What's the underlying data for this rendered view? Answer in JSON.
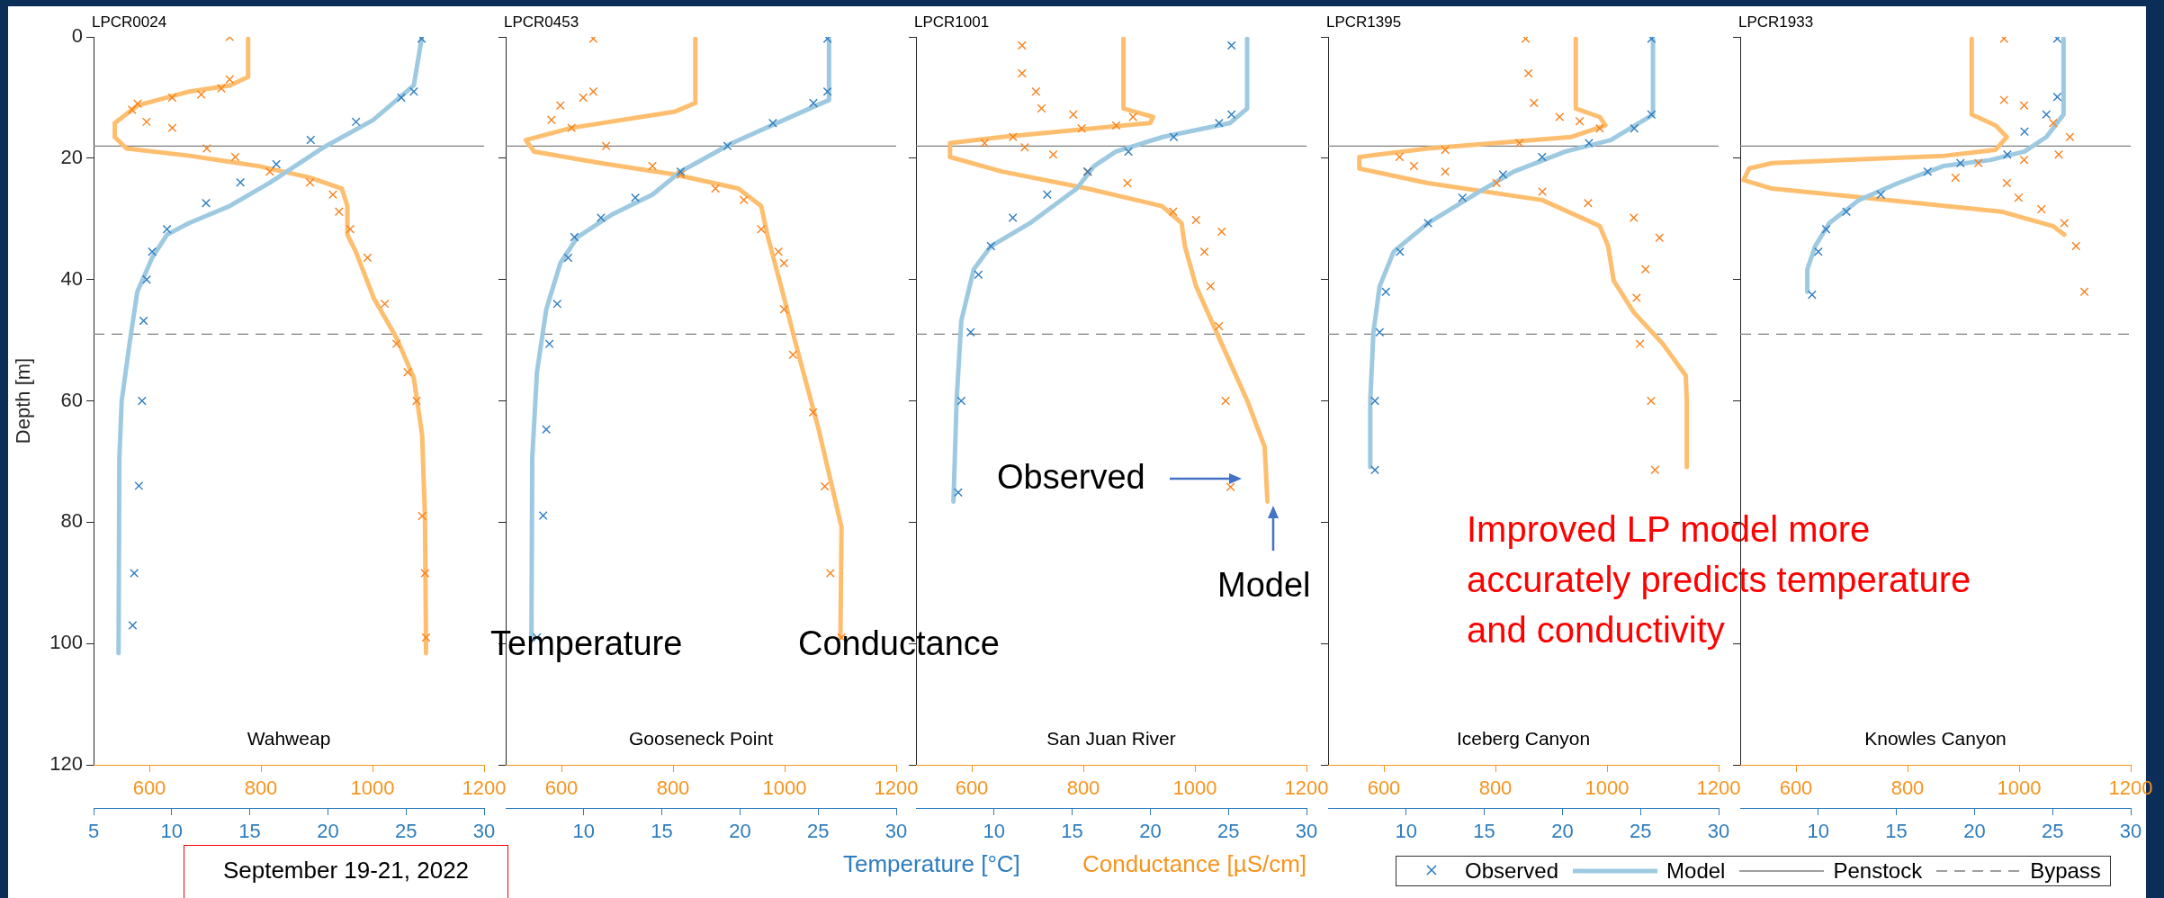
{
  "chart_data": [
    {
      "type": "line",
      "title": "LPCR0024",
      "subtitle": "Wahweap",
      "ylabel": "Depth [m]",
      "ylim": [
        120,
        0
      ],
      "yticks": [
        0,
        20,
        40,
        60,
        80,
        100,
        120
      ],
      "xlim": [
        5,
        30
      ],
      "xticks": [
        5,
        10,
        15,
        20,
        25,
        30
      ],
      "x2lim": [
        500,
        1200
      ],
      "x2ticks": [
        600,
        800,
        1000,
        1200
      ],
      "ref_lines": [
        {
          "axis": "y",
          "value": 18,
          "color": "#7f7f7f",
          "line_style": "solid"
        },
        {
          "axis": "y",
          "value": 49,
          "color": "#7f7f7f",
          "line_style": "dashed"
        }
      ],
      "annotations": [
        "September 19-21, 2022"
      ],
      "series": [
        {
          "type": "scatter",
          "marker": "cross",
          "color": "#2e7dbf",
          "x": [
            26.0,
            25.5,
            24.7,
            21.8,
            18.9,
            16.7,
            14.4,
            12.2,
            9.7,
            8.75,
            8.4,
            8.2,
            8.1,
            7.9,
            7.6,
            7.5
          ],
          "values": [
            0.3,
            9,
            10,
            14,
            17,
            21,
            24,
            27.4,
            31.7,
            35.4,
            40,
            46.8,
            60,
            74,
            88.4,
            97
          ]
        },
        {
          "type": "line",
          "line_style": "solid",
          "color": "#9ecae1",
          "x": [
            26.0,
            25.5,
            22.9,
            19.6,
            16.3,
            13.7,
            11.1,
            9.7,
            8.75,
            7.8,
            7.3,
            6.8,
            6.65,
            6.6
          ],
          "values": [
            0.3,
            8,
            13.7,
            18.4,
            24,
            27.9,
            30.7,
            32.6,
            36.4,
            42,
            50.6,
            60,
            69.5,
            101.6
          ]
        },
        {
          "type": "scatter",
          "marker": "cross",
          "axis": "x2",
          "color": "#f7821e",
          "x": [
            744,
            744,
            729,
            693,
            641,
            579,
            569,
            595,
            641,
            703,
            754,
            816,
            888,
            929,
            940,
            960,
            991,
            1022,
            1043,
            1063,
            1079,
            1089,
            1094,
            1096
          ],
          "values": [
            0,
            7,
            8.5,
            9.5,
            10,
            11,
            12,
            14,
            15,
            18.4,
            19.8,
            22.2,
            24,
            26,
            28.8,
            31.7,
            36.4,
            44,
            50.6,
            55.3,
            60,
            79,
            88.4,
            99
          ]
        },
        {
          "type": "line",
          "line_style": "solid",
          "axis": "x2",
          "color": "#fdbf6f",
          "x": [
            777,
            777,
            744,
            672,
            579,
            538,
            538,
            559,
            672,
            796,
            888,
            945,
            955,
            955,
            970,
            1002,
            1043,
            1074,
            1089,
            1094,
            1096
          ],
          "values": [
            0.3,
            6.6,
            8,
            9,
            11.3,
            14.2,
            16.5,
            18.4,
            19.6,
            21.3,
            23.2,
            25,
            27.9,
            32.6,
            35.4,
            43,
            49.6,
            56.2,
            65.7,
            79,
            101.6
          ]
        }
      ]
    },
    {
      "type": "line",
      "title": "LPCR0453",
      "subtitle": "Gooseneck Point",
      "tick_labels": "x",
      "ylim": [
        120,
        0
      ],
      "yticks": [
        0,
        20,
        40,
        60,
        80,
        100,
        120
      ],
      "xlim": [
        5,
        30
      ],
      "xticks": [
        10,
        15,
        20,
        25,
        30
      ],
      "x2lim": [
        500,
        1200
      ],
      "x2ticks": [
        600,
        800,
        1000,
        1200
      ],
      "ref_lines": [
        {
          "axis": "y",
          "value": 18,
          "color": "#7f7f7f",
          "line_style": "solid"
        },
        {
          "axis": "y",
          "value": 49,
          "color": "#7f7f7f",
          "line_style": "dashed"
        }
      ],
      "annotations": [
        "Temperature",
        "Conductance"
      ],
      "series": [
        {
          "type": "scatter",
          "marker": "cross",
          "color": "#2e7dbf",
          "x": [
            25.6,
            25.6,
            24.7,
            22.1,
            19.2,
            16.2,
            13.3,
            11.1,
            9.4,
            9.0,
            8.3,
            7.8,
            7.6,
            7.4,
            7.0
          ],
          "values": [
            0.3,
            9,
            10.9,
            14.2,
            18,
            22.2,
            26.5,
            29.8,
            33,
            36.4,
            44,
            50.6,
            64.7,
            78.9,
            99
          ]
        },
        {
          "type": "line",
          "line_style": "solid",
          "color": "#9ecae1",
          "x": [
            25.7,
            25.7,
            22.8,
            19.5,
            16.2,
            14.4,
            11.8,
            9.6,
            8.5,
            7.6,
            7.0,
            6.7,
            6.65
          ],
          "values": [
            0.3,
            10.4,
            13.7,
            17.5,
            22.2,
            26,
            29.3,
            33,
            37.3,
            44.9,
            55.3,
            69.5,
            98.8
          ]
        },
        {
          "type": "scatter",
          "marker": "cross",
          "axis": "x2",
          "color": "#f7821e",
          "x": [
            657,
            657,
            639,
            598,
            582,
            618,
            680,
            763,
            814,
            876,
            927,
            958,
            989,
            999,
            999,
            1015,
            1051,
            1072,
            1082,
            1102
          ],
          "values": [
            0.3,
            9,
            10,
            11.3,
            13.7,
            15,
            18,
            21.3,
            22.7,
            25,
            26.9,
            31.7,
            35.4,
            37.3,
            44.9,
            52.4,
            61.9,
            74.1,
            88.4,
            99
          ]
        },
        {
          "type": "line",
          "line_style": "solid",
          "axis": "x2",
          "color": "#fdbf6f",
          "x": [
            840,
            840,
            804,
            618,
            536,
            551,
            670,
            804,
            917,
            958,
            969,
            999,
            1020,
            1061,
            1092,
            1102,
            1100
          ],
          "values": [
            0.3,
            10.9,
            12.3,
            15,
            17,
            18.9,
            20.8,
            22.7,
            25,
            27.9,
            32.6,
            43,
            50.6,
            64.7,
            76.9,
            80.8,
            99
          ]
        }
      ]
    },
    {
      "type": "line",
      "title": "LPCR1001",
      "subtitle": "San Juan River",
      "xlabel": "Temperature [°C]",
      "x2label": "Conductance [µS/cm]",
      "tick_labels": "x",
      "ylim": [
        120,
        0
      ],
      "yticks": [
        0,
        20,
        40,
        60,
        80,
        100,
        120
      ],
      "xlim": [
        5,
        30
      ],
      "xticks": [
        10,
        15,
        20,
        25,
        30
      ],
      "x2lim": [
        500,
        1200
      ],
      "x2ticks": [
        600,
        800,
        1000,
        1200
      ],
      "ref_lines": [
        {
          "axis": "y",
          "value": 18,
          "color": "#7f7f7f",
          "line_style": "solid"
        },
        {
          "axis": "y",
          "value": 49,
          "color": "#7f7f7f",
          "line_style": "dashed"
        }
      ],
      "annotations": [
        "Observed",
        "Model"
      ],
      "series": [
        {
          "type": "scatter",
          "marker": "cross",
          "color": "#2e7dbf",
          "x": [
            25.2,
            25.2,
            24.4,
            21.5,
            18.6,
            16.0,
            13.4,
            11.2,
            9.8,
            9.0,
            8.5,
            7.9,
            7.7
          ],
          "values": [
            1.4,
            12.8,
            14.2,
            16.5,
            18.9,
            22.2,
            26,
            29.8,
            34.5,
            39.2,
            48.7,
            60,
            75.1
          ]
        },
        {
          "type": "line",
          "line_style": "solid",
          "color": "#9ecae1",
          "x": [
            26.2,
            26.2,
            25.1,
            20.8,
            17.8,
            16.4,
            15.3,
            12.3,
            9.8,
            8.7,
            7.9,
            7.6,
            7.4
          ],
          "values": [
            0.3,
            11.8,
            14.2,
            16.5,
            18.9,
            21.3,
            25,
            30.7,
            34.5,
            38.3,
            46.8,
            60,
            76.6
          ]
        },
        {
          "type": "scatter",
          "marker": "cross",
          "axis": "x2",
          "color": "#f7821e",
          "x": [
            690,
            690,
            715,
            725,
            782,
            889,
            859,
            797,
            674,
            623,
            695,
            746,
            807,
            879,
            961,
            1002,
            1048,
            1017,
            1028,
            1043,
            1055,
            1064
          ],
          "values": [
            1.4,
            6,
            9,
            11.8,
            12.8,
            13.2,
            14.6,
            15.1,
            16.5,
            17.5,
            18.2,
            19.4,
            22.2,
            24.1,
            28.8,
            30.2,
            32.1,
            35.4,
            41.1,
            47.7,
            60,
            74.2
          ]
        },
        {
          "type": "line",
          "line_style": "solid",
          "axis": "x2",
          "color": "#fdbf6f",
          "x": [
            872,
            872,
            925,
            920,
            654,
            561,
            561,
            654,
            807,
            941,
            976,
            982,
            1002,
            1048,
            1094,
            1125,
            1130
          ],
          "values": [
            0.3,
            11.8,
            13.2,
            14.2,
            16.5,
            17.5,
            19.8,
            22.2,
            25,
            27.9,
            30.7,
            34.5,
            41.1,
            50.6,
            60,
            67.6,
            76.6
          ]
        }
      ]
    },
    {
      "type": "line",
      "title": "LPCR1395",
      "subtitle": "Iceberg Canyon",
      "tick_labels": "x",
      "ylim": [
        120,
        0
      ],
      "yticks": [
        0,
        20,
        40,
        60,
        80,
        100,
        120
      ],
      "xlim": [
        5,
        30
      ],
      "xticks": [
        10,
        15,
        20,
        25,
        30
      ],
      "x2lim": [
        500,
        1200
      ],
      "x2ticks": [
        600,
        800,
        1000,
        1200
      ],
      "ref_lines": [
        {
          "axis": "y",
          "value": 18,
          "color": "#7f7f7f",
          "line_style": "solid"
        },
        {
          "axis": "y",
          "value": 49,
          "color": "#7f7f7f",
          "line_style": "dashed"
        }
      ],
      "annotations": [
        "Improved LP model more accurately predicts temperature and conductivity"
      ],
      "series": [
        {
          "type": "scatter",
          "marker": "cross",
          "color": "#2e7dbf",
          "x": [
            25.7,
            25.7,
            24.6,
            21.7,
            18.7,
            16.2,
            13.6,
            11.4,
            9.6,
            8.7,
            8.3,
            8.0,
            8.0
          ],
          "values": [
            0.3,
            12.8,
            15.1,
            17.5,
            19.8,
            22.7,
            26.5,
            30.7,
            35.4,
            42,
            48.7,
            60,
            71.4
          ]
        },
        {
          "type": "line",
          "line_style": "solid",
          "color": "#9ecae1",
          "x": [
            25.8,
            25.8,
            23.1,
            20.2,
            16.9,
            14.7,
            11.4,
            9.2,
            8.3,
            7.9,
            7.7,
            7.7
          ],
          "values": [
            0.3,
            12.8,
            17,
            18.9,
            22.2,
            25.5,
            30.7,
            35.4,
            41.1,
            48.7,
            60,
            70.9
          ]
        },
        {
          "type": "scatter",
          "marker": "cross",
          "axis": "x2",
          "color": "#f7821e",
          "x": [
            854,
            859,
            869,
            915,
            951,
            987,
            843,
            710,
            628,
            654,
            710,
            802,
            884,
            966,
            1048,
            1094,
            1069,
            1053,
            1059,
            1079,
            1086
          ],
          "values": [
            0.3,
            6,
            10.9,
            13.2,
            13.9,
            15.1,
            17.5,
            18.6,
            19.8,
            21.3,
            22.2,
            24.1,
            25.5,
            27.4,
            29.8,
            33.1,
            38.3,
            43,
            50.6,
            60,
            71.4
          ]
        },
        {
          "type": "line",
          "line_style": "solid",
          "axis": "x2",
          "color": "#fdbf6f",
          "x": [
            944,
            944,
            987,
            997,
            936,
            679,
            556,
            556,
            679,
            884,
            987,
            1002,
            1012,
            1048,
            1100,
            1141,
            1143,
            1143
          ],
          "values": [
            0.3,
            11.8,
            13.2,
            14.6,
            16.5,
            18.4,
            19.8,
            21.7,
            24.1,
            26.9,
            31.2,
            34.5,
            40.2,
            45.4,
            50.6,
            55.8,
            60,
            70.9
          ]
        }
      ]
    },
    {
      "type": "line",
      "title": "LPCR1933",
      "subtitle": "Knowles Canyon",
      "tick_labels": "x",
      "legend": "bottom",
      "ylim": [
        120,
        0
      ],
      "yticks": [
        0,
        20,
        40,
        60,
        80,
        100,
        120
      ],
      "xlim": [
        5,
        30
      ],
      "xticks": [
        10,
        15,
        20,
        25,
        30
      ],
      "x2lim": [
        500,
        1200
      ],
      "x2ticks": [
        600,
        800,
        1000,
        1200
      ],
      "ref_lines": [
        {
          "axis": "y",
          "value": 18,
          "color": "#7f7f7f",
          "line_style": "solid",
          "label": "Penstock"
        },
        {
          "axis": "y",
          "value": 49,
          "color": "#7f7f7f",
          "line_style": "dashed",
          "label": "Bypass"
        }
      ],
      "series": [
        {
          "name": "Observed",
          "type": "scatter",
          "marker": "cross",
          "color": "#2e7dbf",
          "x": [
            25.3,
            25.3,
            24.6,
            23.2,
            22.1,
            19.1,
            17.0,
            14.0,
            11.8,
            10.5,
            10.0,
            9.6
          ],
          "values": [
            0.3,
            9.9,
            12.8,
            15.6,
            19.4,
            20.8,
            22.2,
            26,
            28.8,
            31.7,
            35.4,
            42.5
          ]
        },
        {
          "name": "Model",
          "type": "line",
          "line_style": "solid",
          "color": "#9ecae1",
          "x": [
            25.7,
            25.7,
            24.6,
            23.2,
            21.0,
            18.0,
            15.1,
            12.6,
            10.7,
            9.8,
            9.3,
            9.3
          ],
          "values": [
            0.3,
            12.8,
            16.5,
            18.9,
            20.3,
            21.3,
            24.1,
            26.9,
            30.7,
            34.5,
            38.3,
            42
          ]
        },
        {
          "type": "scatter",
          "marker": "cross",
          "axis": "x2",
          "color": "#f7821e",
          "x": [
            973,
            973,
            1009,
            1061,
            1091,
            1071,
            1009,
            927,
            886,
            978,
            999,
            1040,
            1081,
            1102,
            1117
          ],
          "values": [
            0.3,
            10.4,
            11.3,
            14.2,
            16.5,
            19.4,
            20.3,
            20.8,
            23.2,
            24.1,
            26.5,
            28.4,
            30.7,
            34.5,
            42
          ]
        },
        {
          "type": "line",
          "line_style": "solid",
          "axis": "x2",
          "color": "#fdbf6f",
          "x": [
            915,
            915,
            958,
            978,
            958,
            866,
            557,
            516,
            506,
            557,
            763,
            968,
            1061,
            1081
          ],
          "values": [
            0.3,
            12.8,
            14.6,
            16.5,
            18.6,
            19.6,
            20.8,
            21.7,
            23.6,
            25,
            26.9,
            28.8,
            31.2,
            32.6
          ]
        }
      ]
    }
  ]
}
